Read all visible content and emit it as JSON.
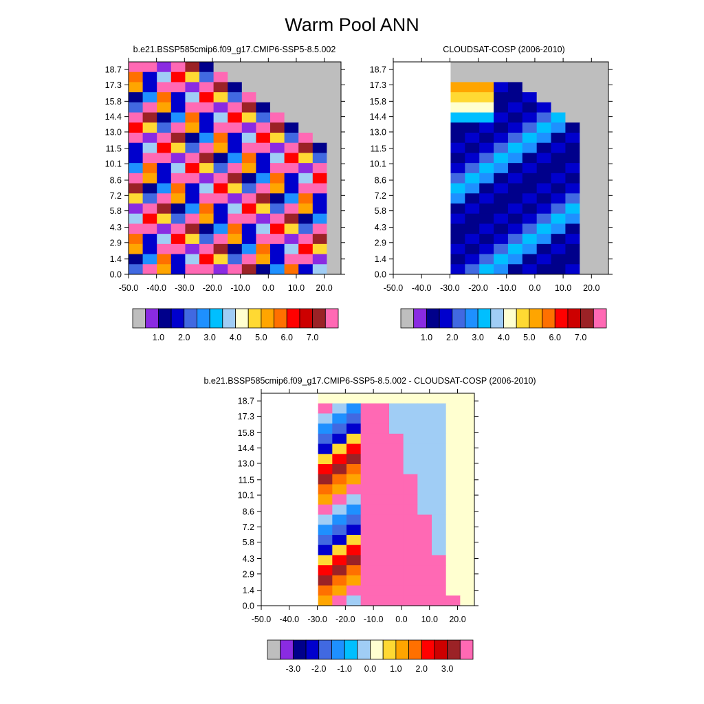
{
  "title": "Warm Pool ANN",
  "chart_data": [
    {
      "type": "heatmap",
      "title": "b.e21.BSSP585cmip6.f09_g17.CMIP6-SSP5-8.5.002",
      "xlabel": "",
      "ylabel": "",
      "x_ticks": [
        "-50.0",
        "-40.0",
        "-30.0",
        "-20.0",
        "-10.0",
        "0.0",
        "10.0",
        "20.0"
      ],
      "y_ticks": [
        "0.0",
        "1.4",
        "2.9",
        "4.3",
        "5.8",
        "7.2",
        "8.6",
        "10.1",
        "11.5",
        "13.0",
        "14.4",
        "15.8",
        "17.3",
        "18.7"
      ],
      "xlim": [
        -50,
        26
      ],
      "ylim": [
        0,
        19.4
      ],
      "missing_color": "#BEBEBE",
      "colorbar": {
        "colors": [
          "#BEBEBE",
          "#8A2BE2",
          "#00008B",
          "#0000CD",
          "#4169E1",
          "#1E90FF",
          "#00BFFF",
          "#A0CDF5",
          "#FFFFD0",
          "#FFD933",
          "#FFA500",
          "#FF7000",
          "#FF0000",
          "#CD0000",
          "#9B2226",
          "#FF69B4"
        ],
        "labels": [
          "1.0",
          "2.0",
          "3.0",
          "4.0",
          "5.0",
          "6.0",
          "7.0"
        ]
      }
    },
    {
      "type": "heatmap",
      "title": "CLOUDSAT-COSP (2006-2010)",
      "xlabel": "",
      "ylabel": "",
      "x_ticks": [
        "-50.0",
        "-40.0",
        "-30.0",
        "-20.0",
        "-10.0",
        "0.0",
        "10.0",
        "20.0"
      ],
      "y_ticks": [
        "0.0",
        "1.4",
        "2.9",
        "4.3",
        "5.8",
        "7.2",
        "8.6",
        "10.1",
        "11.5",
        "13.0",
        "14.4",
        "15.8",
        "17.3",
        "18.7"
      ],
      "xlim": [
        -50,
        26
      ],
      "ylim": [
        0,
        19.4
      ],
      "missing_color": "#BEBEBE",
      "colorbar": {
        "colors": [
          "#BEBEBE",
          "#8A2BE2",
          "#00008B",
          "#0000CD",
          "#4169E1",
          "#1E90FF",
          "#00BFFF",
          "#A0CDF5",
          "#FFFFD0",
          "#FFD933",
          "#FFA500",
          "#FF7000",
          "#FF0000",
          "#CD0000",
          "#9B2226",
          "#FF69B4"
        ],
        "labels": [
          "1.0",
          "2.0",
          "3.0",
          "4.0",
          "5.0",
          "6.0",
          "7.0"
        ]
      }
    },
    {
      "type": "heatmap",
      "title": "b.e21.BSSP585cmip6.f09_g17.CMIP6-SSP5-8.5.002 - CLOUDSAT-COSP (2006-2010)",
      "xlabel": "",
      "ylabel": "",
      "x_ticks": [
        "-50.0",
        "-40.0",
        "-30.0",
        "-20.0",
        "-10.0",
        "0.0",
        "10.0",
        "20.0"
      ],
      "y_ticks": [
        "0.0",
        "1.4",
        "2.9",
        "4.3",
        "5.8",
        "7.2",
        "8.6",
        "10.1",
        "11.5",
        "13.0",
        "14.4",
        "15.8",
        "17.3",
        "18.7"
      ],
      "xlim": [
        -50,
        26
      ],
      "ylim": [
        0,
        19.4
      ],
      "colorbar": {
        "colors": [
          "#BEBEBE",
          "#8A2BE2",
          "#00008B",
          "#0000CD",
          "#4169E1",
          "#1E90FF",
          "#00BFFF",
          "#A0CDF5",
          "#FFFFD0",
          "#FFD933",
          "#FFA500",
          "#FF7000",
          "#FF0000",
          "#CD0000",
          "#9B2226",
          "#FF69B4"
        ],
        "labels": [
          "-3.0",
          "-2.0",
          "-1.0",
          "0.0",
          "1.0",
          "2.0",
          "3.0"
        ]
      }
    }
  ]
}
